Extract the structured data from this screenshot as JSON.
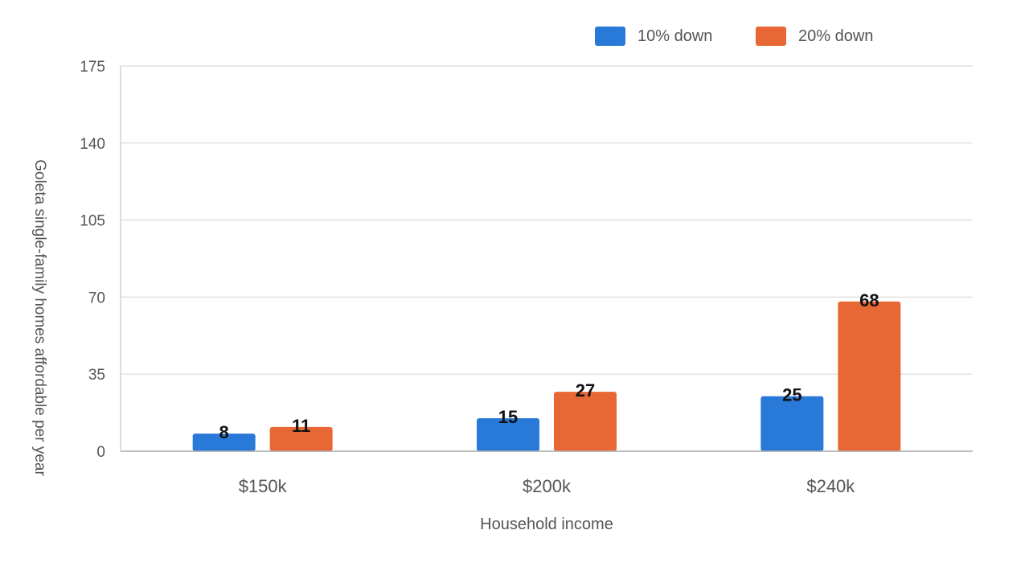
{
  "chart_data": {
    "type": "bar",
    "categories": [
      "$150k",
      "$200k",
      "$240k"
    ],
    "series": [
      {
        "name": "10% down",
        "values": [
          8,
          15,
          25
        ],
        "color": "#2979d9"
      },
      {
        "name": "20% down",
        "values": [
          11,
          27,
          68
        ],
        "color": "#e86835"
      }
    ],
    "xlabel": "Household income",
    "ylabel": "Goleta single-family homes affordable per year",
    "ylim": [
      0,
      175
    ],
    "yticks": [
      0,
      35,
      70,
      105,
      140,
      175
    ],
    "grid": true,
    "legend": "top-right",
    "data_labels": true
  }
}
